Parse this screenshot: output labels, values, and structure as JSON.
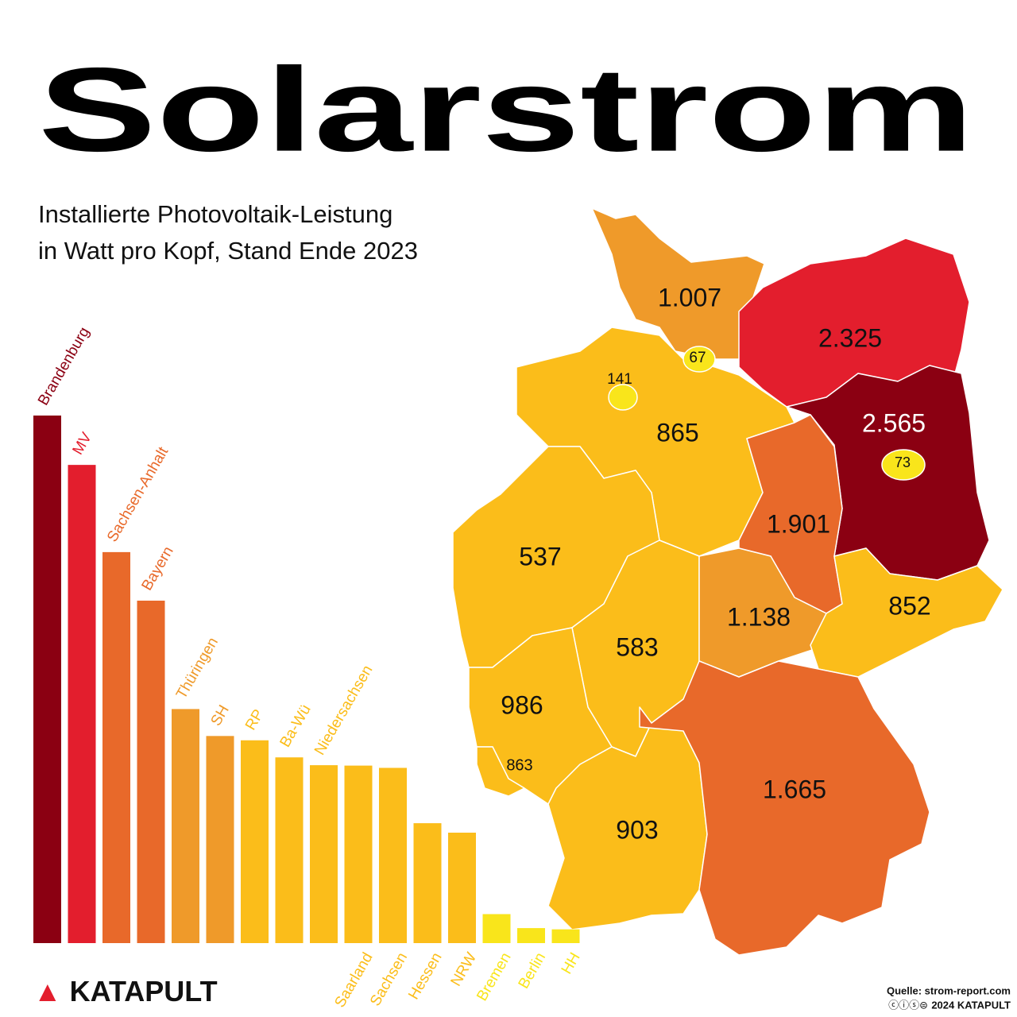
{
  "chart_data": {
    "type": "bar",
    "title": "Solarstrom",
    "subtitle": [
      "Installierte Photovoltaik-Leistung",
      "in Watt pro Kopf, Stand Ende 2023"
    ],
    "categories": [
      "Brandenburg",
      "MV",
      "Sachsen-Anhalt",
      "Bayern",
      "Thüringen",
      "SH",
      "RP",
      "Ba-Wü",
      "Niedersachsen",
      "Saarland",
      "Sachsen",
      "Hessen",
      "NRW",
      "Bremen",
      "Berlin",
      "HH"
    ],
    "values": [
      2565,
      2325,
      1901,
      1665,
      1138,
      1007,
      986,
      903,
      865,
      863,
      852,
      583,
      537,
      141,
      73,
      67
    ],
    "value_labels": [
      "2.565",
      "2.325",
      "1.901",
      "1.665",
      "1.138",
      "1.007",
      "986",
      "903",
      "865",
      "863",
      "852",
      "583",
      "537",
      "141",
      "73",
      "67"
    ],
    "colors": [
      "#8b0012",
      "#e31e2d",
      "#e8692a",
      "#e8692a",
      "#ef9a2a",
      "#ef9a2a",
      "#fbbd1a",
      "#fbbd1a",
      "#fbbd1a",
      "#fbbd1a",
      "#fbbd1a",
      "#fbbd1a",
      "#fbbd1a",
      "#f9e51b",
      "#f9e51b",
      "#f9e51b"
    ]
  },
  "footer": {
    "brand": "KATAPULT",
    "source": "Quelle: strom-report.com",
    "credit": "2024 KATAPULT"
  }
}
